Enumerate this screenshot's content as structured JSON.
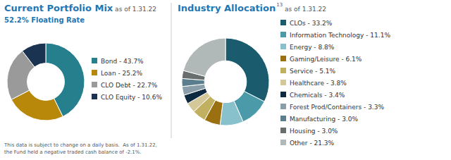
{
  "chart_data": [
    {
      "type": "pie",
      "title": "Current Portfolio Mix",
      "subtitle": "52.2% Floating Rate",
      "annotations": [
        " as of 1.31.22",
        "This data is subject to change on a daily basis.  As of 1.31.22,\nthe Fund held a negative traded cash balance of -2.1%."
      ],
      "categories": [
        "Bond - 43.7%",
        "Loan - 25.2%",
        "CLO Debt - 22.7%",
        "CLO Equity - 10.6%"
      ],
      "values": [
        43.7,
        25.2,
        22.7,
        10.6
      ],
      "colors": [
        "#257f8c",
        "#b8880b",
        "#9a9a9a",
        "#1a3350"
      ]
    },
    {
      "type": "pie",
      "title": "Industry Allocation",
      "annotations": [
        "13",
        " as of 1.31.22"
      ],
      "categories": [
        "CLOs - 33.2%",
        "Information Technology - 11.1%",
        "Energy - 8.8%",
        "Gaming/Leisure - 6.1%",
        "Service - 5.1%",
        "Healthcare - 3.8%",
        "Chemicals - 3.4%",
        "Forest Prod/Containers - 3.3%",
        "Manufacturing - 3.0%",
        "Housing - 3.0%",
        "Other - 21.3%"
      ],
      "values": [
        33.2,
        11.1,
        8.8,
        6.1,
        5.1,
        3.8,
        3.4,
        3.3,
        3.0,
        3.0,
        21.3
      ],
      "colors": [
        "#1a5c6e",
        "#4a9aaa",
        "#88c0cc",
        "#9a7010",
        "#c0b060",
        "#d4c898",
        "#0d2a40",
        "#8a9eaa",
        "#5a7e8e",
        "#686e6e",
        "#b0b8b8"
      ]
    }
  ]
}
